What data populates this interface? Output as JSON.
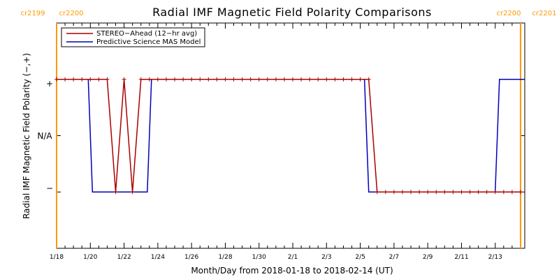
{
  "chart_data": {
    "type": "line",
    "title": "Radial IMF Magnetic Field Polarity Comparisons",
    "xlabel": "Month/Day from 2018-01-18 to 2018-02-14 (UT)",
    "ylabel": "Radial IMF Magnetic Field Polarity (−,+)",
    "xlim": [
      "2018-01-18",
      "2018-02-14T18:00"
    ],
    "ylim": [
      -2,
      2
    ],
    "ytick_values": [
      -1,
      0,
      1
    ],
    "ytick_labels": [
      "−",
      "N/A",
      "+"
    ],
    "xtick_labels": [
      "1/18",
      "1/20",
      "1/22",
      "1/24",
      "1/26",
      "1/28",
      "1/30",
      "2/1",
      "2/3",
      "2/5",
      "2/7",
      "2/9",
      "2/11",
      "2/13"
    ],
    "xtick_dates": [
      "2018-01-18",
      "2018-01-20",
      "2018-01-22",
      "2018-01-24",
      "2018-01-26",
      "2018-01-28",
      "2018-01-30",
      "2018-02-01",
      "2018-02-03",
      "2018-02-05",
      "2018-02-07",
      "2018-02-09",
      "2018-02-11",
      "2018-02-13"
    ],
    "grid": false,
    "legend_position": "top-left",
    "carrington_markers": [
      {
        "x": "2018-01-18",
        "label_left": "cr2199",
        "label_right": "cr2200",
        "color": "#ff9900"
      },
      {
        "x": "2018-02-14T12:00",
        "label_left": "cr2200",
        "label_right": "cr2201",
        "color": "#ff9900"
      }
    ],
    "series": [
      {
        "name": "STEREO−Ahead (12−hr avg)",
        "color": "#aa0000",
        "marker": "plus",
        "points": [
          {
            "x": "2018-01-18T00:00",
            "y": 1
          },
          {
            "x": "2018-01-18T12:00",
            "y": 1
          },
          {
            "x": "2018-01-19T00:00",
            "y": 1
          },
          {
            "x": "2018-01-19T12:00",
            "y": 1
          },
          {
            "x": "2018-01-20T00:00",
            "y": 1
          },
          {
            "x": "2018-01-20T12:00",
            "y": 1
          },
          {
            "x": "2018-01-21T00:00",
            "y": 1
          },
          {
            "x": "2018-01-21T12:00",
            "y": -1
          },
          {
            "x": "2018-01-22T00:00",
            "y": 1
          },
          {
            "x": "2018-01-22T12:00",
            "y": -1
          },
          {
            "x": "2018-01-23T00:00",
            "y": 1
          },
          {
            "x": "2018-01-23T12:00",
            "y": 1
          },
          {
            "x": "2018-01-24T00:00",
            "y": 1
          },
          {
            "x": "2018-01-24T12:00",
            "y": 1
          },
          {
            "x": "2018-01-25T00:00",
            "y": 1
          },
          {
            "x": "2018-01-25T12:00",
            "y": 1
          },
          {
            "x": "2018-01-26T00:00",
            "y": 1
          },
          {
            "x": "2018-01-26T12:00",
            "y": 1
          },
          {
            "x": "2018-01-27T00:00",
            "y": 1
          },
          {
            "x": "2018-01-27T12:00",
            "y": 1
          },
          {
            "x": "2018-01-28T00:00",
            "y": 1
          },
          {
            "x": "2018-01-28T12:00",
            "y": 1
          },
          {
            "x": "2018-01-29T00:00",
            "y": 1
          },
          {
            "x": "2018-01-29T12:00",
            "y": 1
          },
          {
            "x": "2018-01-30T00:00",
            "y": 1
          },
          {
            "x": "2018-01-30T12:00",
            "y": 1
          },
          {
            "x": "2018-01-31T00:00",
            "y": 1
          },
          {
            "x": "2018-01-31T12:00",
            "y": 1
          },
          {
            "x": "2018-02-01T00:00",
            "y": 1
          },
          {
            "x": "2018-02-01T12:00",
            "y": 1
          },
          {
            "x": "2018-02-02T00:00",
            "y": 1
          },
          {
            "x": "2018-02-02T12:00",
            "y": 1
          },
          {
            "x": "2018-02-03T00:00",
            "y": 1
          },
          {
            "x": "2018-02-03T12:00",
            "y": 1
          },
          {
            "x": "2018-02-04T00:00",
            "y": 1
          },
          {
            "x": "2018-02-04T12:00",
            "y": 1
          },
          {
            "x": "2018-02-05T00:00",
            "y": 1
          },
          {
            "x": "2018-02-05T12:00",
            "y": 1
          },
          {
            "x": "2018-02-06T00:00",
            "y": -1
          },
          {
            "x": "2018-02-06T12:00",
            "y": -1
          },
          {
            "x": "2018-02-07T00:00",
            "y": -1
          },
          {
            "x": "2018-02-07T12:00",
            "y": -1
          },
          {
            "x": "2018-02-08T00:00",
            "y": -1
          },
          {
            "x": "2018-02-08T12:00",
            "y": -1
          },
          {
            "x": "2018-02-09T00:00",
            "y": -1
          },
          {
            "x": "2018-02-09T12:00",
            "y": -1
          },
          {
            "x": "2018-02-10T00:00",
            "y": -1
          },
          {
            "x": "2018-02-10T12:00",
            "y": -1
          },
          {
            "x": "2018-02-11T00:00",
            "y": -1
          },
          {
            "x": "2018-02-11T12:00",
            "y": -1
          },
          {
            "x": "2018-02-12T00:00",
            "y": -1
          },
          {
            "x": "2018-02-12T12:00",
            "y": -1
          },
          {
            "x": "2018-02-13T00:00",
            "y": -1
          },
          {
            "x": "2018-02-13T12:00",
            "y": -1
          },
          {
            "x": "2018-02-14T00:00",
            "y": -1
          },
          {
            "x": "2018-02-14T12:00",
            "y": -1
          }
        ]
      },
      {
        "name": "Predictive Science MAS Model",
        "color": "#0000bb",
        "marker": "none",
        "points": [
          {
            "x": "2018-01-18T00:00",
            "y": 1
          },
          {
            "x": "2018-01-19T21:00",
            "y": 1
          },
          {
            "x": "2018-01-20T03:00",
            "y": -1
          },
          {
            "x": "2018-01-23T09:00",
            "y": -1
          },
          {
            "x": "2018-01-23T15:00",
            "y": 1
          },
          {
            "x": "2018-02-05T06:00",
            "y": 1
          },
          {
            "x": "2018-02-05T12:00",
            "y": -1
          },
          {
            "x": "2018-02-13T00:00",
            "y": -1
          },
          {
            "x": "2018-02-13T06:00",
            "y": 1
          },
          {
            "x": "2018-02-14T18:00",
            "y": 1
          }
        ]
      }
    ]
  }
}
